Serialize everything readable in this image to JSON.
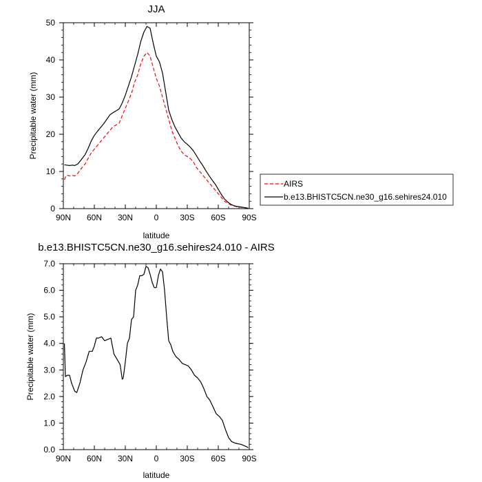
{
  "chart_data": [
    {
      "type": "line",
      "title": "JJA",
      "xlabel": "latitude",
      "ylabel": "Precipitable water (mm)",
      "xlim": [
        90,
        -90
      ],
      "ylim": [
        0,
        50
      ],
      "x_ticks": [
        90,
        60,
        30,
        0,
        -30,
        -60,
        -90
      ],
      "x_tick_labels": [
        "90N",
        "60N",
        "30N",
        "0",
        "30S",
        "60S",
        "90S"
      ],
      "y_ticks": [
        0,
        10,
        20,
        30,
        40,
        50
      ],
      "y_tick_labels": [
        "0",
        "10",
        "20",
        "30",
        "40",
        "50"
      ],
      "legend_position": "right",
      "series": [
        {
          "name": "AIRS",
          "color": "#ff0000",
          "dash": "dashed",
          "points": [
            [
              89,
              7.8
            ],
            [
              87,
              9
            ],
            [
              84,
              8.8
            ],
            [
              81,
              8.9
            ],
            [
              79,
              8.8
            ],
            [
              76,
              9.5
            ],
            [
              72,
              11
            ],
            [
              69,
              12
            ],
            [
              66,
              13.5
            ],
            [
              63,
              15
            ],
            [
              60,
              16
            ],
            [
              57,
              17
            ],
            [
              54,
              18
            ],
            [
              51,
              19
            ],
            [
              48,
              20
            ],
            [
              45,
              21
            ],
            [
              42,
              22
            ],
            [
              39,
              22.5
            ],
            [
              36,
              23
            ],
            [
              33,
              25
            ],
            [
              30,
              27
            ],
            [
              27,
              29
            ],
            [
              24,
              31
            ],
            [
              21,
              34
            ],
            [
              18,
              36
            ],
            [
              15,
              39
            ],
            [
              12,
              41
            ],
            [
              9,
              42
            ],
            [
              6,
              41
            ],
            [
              3,
              38
            ],
            [
              0,
              35
            ],
            [
              -3,
              33
            ],
            [
              -6,
              30
            ],
            [
              -9,
              27
            ],
            [
              -12,
              24
            ],
            [
              -15,
              21
            ],
            [
              -18,
              19
            ],
            [
              -21,
              17
            ],
            [
              -24,
              15.5
            ],
            [
              -27,
              14.5
            ],
            [
              -30,
              14
            ],
            [
              -33,
              13.5
            ],
            [
              -36,
              12.5
            ],
            [
              -39,
              11
            ],
            [
              -42,
              10
            ],
            [
              -45,
              9
            ],
            [
              -48,
              8
            ],
            [
              -51,
              7
            ],
            [
              -54,
              6
            ],
            [
              -57,
              5
            ],
            [
              -60,
              4
            ],
            [
              -63,
              3
            ],
            [
              -66,
              2
            ],
            [
              -69,
              1.5
            ],
            [
              -72,
              1
            ],
            [
              -75,
              0.7
            ],
            [
              -78,
              0.5
            ],
            [
              -81,
              0.4
            ],
            [
              -84,
              0.3
            ],
            [
              -87,
              0.2
            ],
            [
              -89,
              0.1
            ]
          ]
        },
        {
          "name": "b.e13.BHISTC5CN.ne30_g16.sehires24.010",
          "color": "#000000",
          "dash": "solid",
          "points": [
            [
              89,
              11.8
            ],
            [
              87,
              11.7
            ],
            [
              84,
              11.6
            ],
            [
              81,
              11.7
            ],
            [
              79,
              11.6
            ],
            [
              76,
              12
            ],
            [
              72,
              13.4
            ],
            [
              69,
              14.5
            ],
            [
              66,
              16.2
            ],
            [
              63,
              18.2
            ],
            [
              60,
              19.7
            ],
            [
              57,
              20.8
            ],
            [
              54,
              21.8
            ],
            [
              51,
              22.8
            ],
            [
              48,
              24
            ],
            [
              45,
              25.2
            ],
            [
              42,
              25.8
            ],
            [
              39,
              26.3
            ],
            [
              36,
              26.8
            ],
            [
              33,
              28.4
            ],
            [
              30,
              30.5
            ],
            [
              27,
              33
            ],
            [
              24,
              35.5
            ],
            [
              21,
              38.5
            ],
            [
              18,
              41.5
            ],
            [
              15,
              45
            ],
            [
              12,
              47.5
            ],
            [
              9,
              49
            ],
            [
              6,
              48.5
            ],
            [
              3,
              44.5
            ],
            [
              0,
              41
            ],
            [
              -3,
              39.5
            ],
            [
              -6,
              36.5
            ],
            [
              -9,
              31.5
            ],
            [
              -12,
              26.5
            ],
            [
              -15,
              24
            ],
            [
              -18,
              22
            ],
            [
              -21,
              20.5
            ],
            [
              -24,
              19
            ],
            [
              -27,
              18
            ],
            [
              -30,
              17.3
            ],
            [
              -33,
              16.5
            ],
            [
              -36,
              15.5
            ],
            [
              -39,
              14.2
            ],
            [
              -42,
              12.8
            ],
            [
              -45,
              11.6
            ],
            [
              -48,
              10.2
            ],
            [
              -51,
              8.9
            ],
            [
              -54,
              7.7
            ],
            [
              -57,
              6.6
            ],
            [
              -60,
              5.2
            ],
            [
              -63,
              3.8
            ],
            [
              -66,
              2.6
            ],
            [
              -69,
              1.8
            ],
            [
              -72,
              1.2
            ],
            [
              -75,
              0.8
            ],
            [
              -78,
              0.6
            ],
            [
              -81,
              0.5
            ],
            [
              -84,
              0.35
            ],
            [
              -87,
              0.2
            ],
            [
              -89,
              0.1
            ]
          ]
        }
      ]
    },
    {
      "type": "line",
      "title": "b.e13.BHISTC5CN.ne30_g16.sehires24.010 - AIRS",
      "xlabel": "latitude",
      "ylabel": "Precipitable water (mm)",
      "xlim": [
        90,
        -90
      ],
      "ylim": [
        0,
        7
      ],
      "x_ticks": [
        90,
        60,
        30,
        0,
        -30,
        -60,
        -90
      ],
      "x_tick_labels": [
        "90N",
        "60N",
        "30N",
        "0",
        "30S",
        "60S",
        "90S"
      ],
      "y_ticks": [
        0,
        1,
        2,
        3,
        4,
        5,
        6,
        7
      ],
      "y_tick_labels": [
        "0.0",
        "1.0",
        "2.0",
        "3.0",
        "4.0",
        "5.0",
        "6.0",
        "7.0"
      ],
      "series": [
        {
          "name": "b.e13.BHISTC5CN.ne30_g16.sehires24.010 - AIRS",
          "color": "#000000",
          "dash": "solid",
          "points": [
            [
              89,
              4.0
            ],
            [
              88,
              2.75
            ],
            [
              86,
              2.8
            ],
            [
              84,
              2.8
            ],
            [
              82,
              2.5
            ],
            [
              79,
              2.2
            ],
            [
              77,
              2.15
            ],
            [
              74,
              2.5
            ],
            [
              71,
              3.0
            ],
            [
              68,
              3.3
            ],
            [
              65,
              3.7
            ],
            [
              62,
              3.7
            ],
            [
              60,
              3.9
            ],
            [
              58,
              4.2
            ],
            [
              56,
              4.2
            ],
            [
              53,
              4.25
            ],
            [
              50,
              4.1
            ],
            [
              47,
              4.15
            ],
            [
              44,
              4.2
            ],
            [
              41,
              3.6
            ],
            [
              38,
              3.4
            ],
            [
              35,
              3.2
            ],
            [
              33,
              2.65
            ],
            [
              32,
              2.7
            ],
            [
              30,
              3.3
            ],
            [
              28,
              4.0
            ],
            [
              26,
              4.2
            ],
            [
              24,
              4.9
            ],
            [
              22,
              5.0
            ],
            [
              20,
              6.0
            ],
            [
              18,
              6.2
            ],
            [
              16,
              6.55
            ],
            [
              14,
              6.55
            ],
            [
              12,
              6.6
            ],
            [
              10,
              6.9
            ],
            [
              8,
              6.85
            ],
            [
              6,
              6.6
            ],
            [
              4,
              6.3
            ],
            [
              2,
              6.1
            ],
            [
              0,
              6.1
            ],
            [
              -2,
              6.55
            ],
            [
              -4,
              6.8
            ],
            [
              -6,
              6.7
            ],
            [
              -8,
              6.0
            ],
            [
              -10,
              5.0
            ],
            [
              -12,
              4.1
            ],
            [
              -14,
              3.95
            ],
            [
              -16,
              3.7
            ],
            [
              -19,
              3.5
            ],
            [
              -22,
              3.4
            ],
            [
              -25,
              3.25
            ],
            [
              -28,
              3.2
            ],
            [
              -31,
              3.15
            ],
            [
              -34,
              3.0
            ],
            [
              -37,
              2.8
            ],
            [
              -40,
              2.7
            ],
            [
              -43,
              2.55
            ],
            [
              -46,
              2.3
            ],
            [
              -49,
              2.0
            ],
            [
              -52,
              1.85
            ],
            [
              -55,
              1.6
            ],
            [
              -58,
              1.35
            ],
            [
              -61,
              1.25
            ],
            [
              -64,
              1.1
            ],
            [
              -67,
              0.75
            ],
            [
              -70,
              0.45
            ],
            [
              -73,
              0.3
            ],
            [
              -76,
              0.25
            ],
            [
              -79,
              0.22
            ],
            [
              -82,
              0.2
            ],
            [
              -85,
              0.15
            ],
            [
              -88,
              0.1
            ],
            [
              -89,
              0.07
            ]
          ]
        }
      ]
    }
  ]
}
